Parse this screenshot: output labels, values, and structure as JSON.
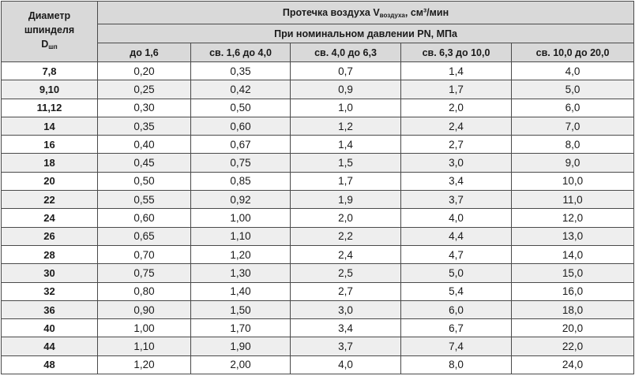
{
  "header": {
    "corner_line1": "Диаметр",
    "corner_line2": "шпинделя",
    "corner_sym": "D",
    "corner_sub": "шп",
    "title_main": "Протечка воздуха V",
    "title_sub": "воздуха",
    "title_tail": ", см³/мин",
    "pressure_label": "При номинальном давлении PN, МПа",
    "columns": [
      "до 1,6",
      "св. 1,6 до 4,0",
      "св. 4,0 до 6,3",
      "св. 6,3 до 10,0",
      "св. 10,0 до 20,0"
    ]
  },
  "rows": [
    {
      "d": "7,8",
      "v": [
        "0,20",
        "0,35",
        "0,7",
        "1,4",
        "4,0"
      ]
    },
    {
      "d": "9,10",
      "v": [
        "0,25",
        "0,42",
        "0,9",
        "1,7",
        "5,0"
      ]
    },
    {
      "d": "11,12",
      "v": [
        "0,30",
        "0,50",
        "1,0",
        "2,0",
        "6,0"
      ]
    },
    {
      "d": "14",
      "v": [
        "0,35",
        "0,60",
        "1,2",
        "2,4",
        "7,0"
      ]
    },
    {
      "d": "16",
      "v": [
        "0,40",
        "0,67",
        "1,4",
        "2,7",
        "8,0"
      ]
    },
    {
      "d": "18",
      "v": [
        "0,45",
        "0,75",
        "1,5",
        "3,0",
        "9,0"
      ]
    },
    {
      "d": "20",
      "v": [
        "0,50",
        "0,85",
        "1,7",
        "3,4",
        "10,0"
      ]
    },
    {
      "d": "22",
      "v": [
        "0,55",
        "0,92",
        "1,9",
        "3,7",
        "11,0"
      ]
    },
    {
      "d": "24",
      "v": [
        "0,60",
        "1,00",
        "2,0",
        "4,0",
        "12,0"
      ]
    },
    {
      "d": "26",
      "v": [
        "0,65",
        "1,10",
        "2,2",
        "4,4",
        "13,0"
      ]
    },
    {
      "d": "28",
      "v": [
        "0,70",
        "1,20",
        "2,4",
        "4,7",
        "14,0"
      ]
    },
    {
      "d": "30",
      "v": [
        "0,75",
        "1,30",
        "2,5",
        "5,0",
        "15,0"
      ]
    },
    {
      "d": "32",
      "v": [
        "0,80",
        "1,40",
        "2,7",
        "5,4",
        "16,0"
      ]
    },
    {
      "d": "36",
      "v": [
        "0,90",
        "1,50",
        "3,0",
        "6,0",
        "18,0"
      ]
    },
    {
      "d": "40",
      "v": [
        "1,00",
        "1,70",
        "3,4",
        "6,7",
        "20,0"
      ]
    },
    {
      "d": "44",
      "v": [
        "1,10",
        "1,90",
        "3,7",
        "7,4",
        "22,0"
      ]
    },
    {
      "d": "48",
      "v": [
        "1,20",
        "2,00",
        "4,0",
        "8,0",
        "24,0"
      ]
    }
  ]
}
